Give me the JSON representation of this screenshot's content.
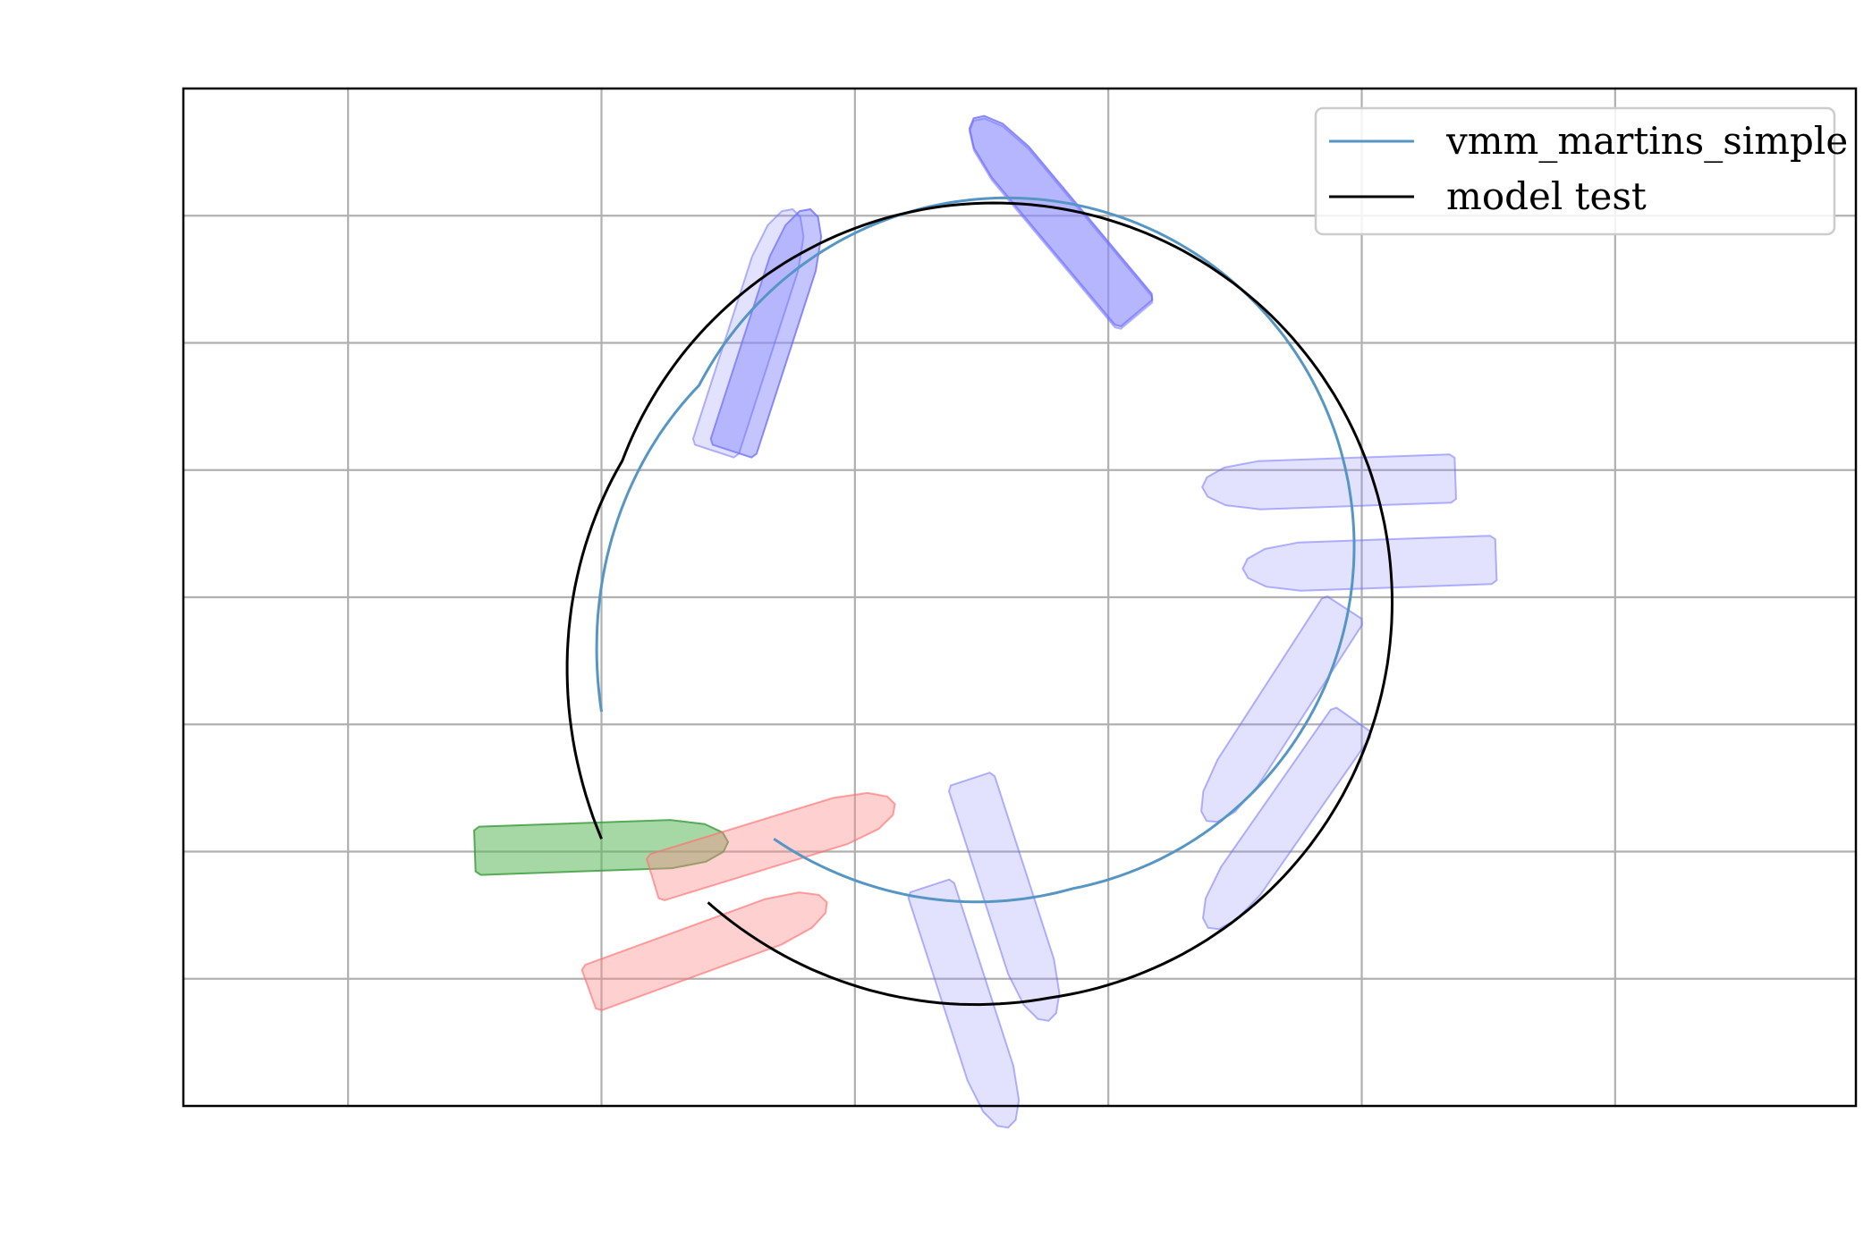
{
  "chart_data": {
    "type": "line",
    "title": "",
    "xlabel": "",
    "ylabel": "",
    "xlim": [
      -1.65,
      4.95
    ],
    "ylim": [
      -2.0,
      2.0
    ],
    "grid": true,
    "legend_position": "top-right",
    "x_gridlines": [
      -1,
      0,
      1,
      2,
      3,
      4
    ],
    "y_gridlines": [
      -1.5,
      -1,
      -0.5,
      0,
      0.5,
      1,
      1.5
    ],
    "colors": {
      "vmm": "#5596c4",
      "model_test": "#000000",
      "ship_start": "#5cb85c",
      "ship_end": "#ff8a8a",
      "ship_mid": "#8a8aff"
    },
    "series": [
      {
        "name": "vmm_martins_simple",
        "color": "#5596c4",
        "center": [
          1.6,
          0.2
        ],
        "radius": 1.37,
        "start": [
          0.0,
          -0.45
        ],
        "end": [
          0.68,
          -0.95
        ]
      },
      {
        "name": "model test",
        "color": "#000000",
        "center": [
          1.55,
          -0.02
        ],
        "radius": 1.57,
        "start": [
          0.0,
          -0.95
        ],
        "end": [
          0.42,
          -1.2
        ]
      }
    ],
    "ships": [
      {
        "role": "start",
        "x": 0.0,
        "y": -0.98,
        "heading": 2,
        "alpha": 0.55
      },
      {
        "role": "end",
        "x": 0.42,
        "y": -1.37,
        "heading": 20,
        "alpha": 0.4
      },
      {
        "role": "end",
        "x": 0.68,
        "y": -0.96,
        "heading": 17,
        "alpha": 0.4
      },
      {
        "role": "mid",
        "x": 0.67,
        "y": 1.05,
        "heading": 72,
        "alpha": 0.5
      },
      {
        "role": "mid",
        "x": 0.6,
        "y": 1.05,
        "heading": 72,
        "alpha": 0.25
      },
      {
        "role": "mid",
        "x": 1.79,
        "y": 1.5,
        "heading": 130,
        "alpha": 0.5
      },
      {
        "role": "mid",
        "x": 1.79,
        "y": 1.49,
        "heading": 130,
        "alpha": 0.25
      },
      {
        "role": "mid",
        "x": 2.87,
        "y": 0.45,
        "heading": 182,
        "alpha": 0.25
      },
      {
        "role": "mid",
        "x": 3.03,
        "y": 0.13,
        "heading": 182,
        "alpha": 0.25
      },
      {
        "role": "mid",
        "x": 2.66,
        "y": -0.46,
        "heading": 237,
        "alpha": 0.25
      },
      {
        "role": "mid",
        "x": 2.68,
        "y": -0.89,
        "heading": 235,
        "alpha": 0.25
      },
      {
        "role": "mid",
        "x": 1.61,
        "y": -1.19,
        "heading": 288,
        "alpha": 0.25
      },
      {
        "role": "mid",
        "x": 1.45,
        "y": -1.61,
        "heading": 288,
        "alpha": 0.25
      }
    ]
  }
}
